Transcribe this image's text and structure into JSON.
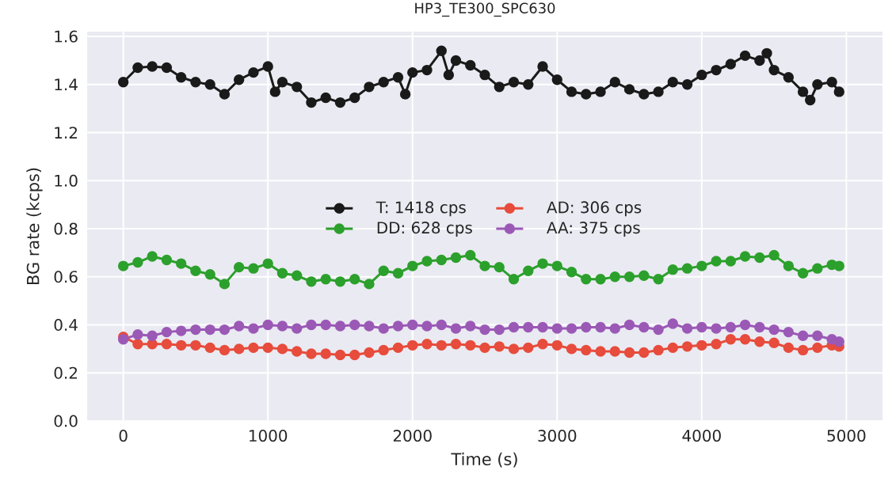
{
  "chart_data": {
    "type": "line",
    "title": "HP3_TE300_SPC630",
    "xlabel": "Time (s)",
    "ylabel": "BG rate (kcps)",
    "xlim": [
      -250,
      5250
    ],
    "ylim": [
      0,
      1.62
    ],
    "xticks": [
      0,
      1000,
      2000,
      3000,
      4000,
      5000
    ],
    "yticks": [
      {
        "value": 0,
        "label": "0.0"
      },
      {
        "value": 0.2,
        "label": "0.2"
      },
      {
        "value": 0.4,
        "label": "0.4"
      },
      {
        "value": 0.6,
        "label": "0.6"
      },
      {
        "value": 0.8,
        "label": "0.8"
      },
      {
        "value": 1.0,
        "label": "1.0"
      },
      {
        "value": 1.2,
        "label": "1.2"
      },
      {
        "value": 1.4,
        "label": "1.4"
      },
      {
        "value": 1.6,
        "label": "1.6"
      }
    ],
    "grid": true,
    "legend": "center",
    "marker": "circle",
    "line_style": "solid",
    "x": [
      0,
      100,
      200,
      300,
      400,
      500,
      600,
      700,
      800,
      900,
      1000,
      1100,
      1200,
      1300,
      1400,
      1500,
      1600,
      1700,
      1800,
      1900,
      2000,
      2100,
      2200,
      2300,
      2400,
      2500,
      2600,
      2700,
      2800,
      2900,
      3000,
      3100,
      3200,
      3300,
      3400,
      3500,
      3600,
      3700,
      3800,
      3900,
      4000,
      4100,
      4200,
      4300,
      4400,
      4500,
      4600,
      4700,
      4800,
      4900,
      4950
    ],
    "series": [
      {
        "name": "T: 1418 cps",
        "color": "#1a1a1a",
        "x": [
          0,
          100,
          200,
          300,
          400,
          500,
          600,
          700,
          800,
          900,
          1000,
          1050,
          1100,
          1200,
          1300,
          1400,
          1500,
          1600,
          1700,
          1800,
          1900,
          1950,
          2000,
          2100,
          2200,
          2250,
          2300,
          2400,
          2500,
          2600,
          2700,
          2800,
          2900,
          3000,
          3100,
          3200,
          3300,
          3400,
          3500,
          3600,
          3700,
          3800,
          3900,
          4000,
          4100,
          4200,
          4300,
          4400,
          4450,
          4500,
          4600,
          4700,
          4750,
          4800,
          4900,
          4950
        ],
        "values": [
          1.41,
          1.47,
          1.475,
          1.47,
          1.43,
          1.41,
          1.4,
          1.36,
          1.42,
          1.45,
          1.475,
          1.37,
          1.41,
          1.39,
          1.325,
          1.345,
          1.325,
          1.345,
          1.39,
          1.41,
          1.43,
          1.36,
          1.45,
          1.46,
          1.54,
          1.44,
          1.5,
          1.48,
          1.44,
          1.39,
          1.41,
          1.4,
          1.475,
          1.42,
          1.37,
          1.36,
          1.37,
          1.41,
          1.38,
          1.36,
          1.37,
          1.41,
          1.4,
          1.44,
          1.46,
          1.485,
          1.52,
          1.5,
          1.53,
          1.46,
          1.43,
          1.37,
          1.335,
          1.4,
          1.41,
          1.37
        ]
      },
      {
        "name": "DD: 628 cps",
        "color": "#2ca02c",
        "values": [
          0.645,
          0.66,
          0.685,
          0.67,
          0.655,
          0.625,
          0.61,
          0.57,
          0.64,
          0.635,
          0.655,
          0.615,
          0.605,
          0.58,
          0.59,
          0.58,
          0.59,
          0.57,
          0.625,
          0.615,
          0.645,
          0.665,
          0.67,
          0.68,
          0.69,
          0.645,
          0.64,
          0.59,
          0.625,
          0.655,
          0.645,
          0.62,
          0.59,
          0.59,
          0.6,
          0.6,
          0.605,
          0.59,
          0.63,
          0.635,
          0.645,
          0.665,
          0.665,
          0.685,
          0.68,
          0.69,
          0.645,
          0.615,
          0.635,
          0.65,
          0.645
        ]
      },
      {
        "name": "AD: 306 cps",
        "color": "#e74c3c",
        "values": [
          0.35,
          0.32,
          0.32,
          0.32,
          0.315,
          0.315,
          0.305,
          0.295,
          0.3,
          0.305,
          0.305,
          0.3,
          0.29,
          0.28,
          0.28,
          0.275,
          0.275,
          0.285,
          0.295,
          0.305,
          0.315,
          0.32,
          0.315,
          0.32,
          0.315,
          0.305,
          0.31,
          0.3,
          0.305,
          0.32,
          0.315,
          0.3,
          0.295,
          0.29,
          0.29,
          0.285,
          0.285,
          0.295,
          0.305,
          0.31,
          0.315,
          0.32,
          0.34,
          0.34,
          0.33,
          0.325,
          0.305,
          0.295,
          0.305,
          0.315,
          0.31
        ]
      },
      {
        "name": "AA: 375 cps",
        "color": "#9b59b6",
        "values": [
          0.34,
          0.36,
          0.355,
          0.37,
          0.375,
          0.38,
          0.38,
          0.38,
          0.395,
          0.385,
          0.4,
          0.395,
          0.385,
          0.4,
          0.4,
          0.395,
          0.4,
          0.395,
          0.385,
          0.395,
          0.4,
          0.395,
          0.4,
          0.385,
          0.395,
          0.38,
          0.38,
          0.39,
          0.39,
          0.39,
          0.385,
          0.385,
          0.39,
          0.39,
          0.385,
          0.4,
          0.39,
          0.38,
          0.405,
          0.385,
          0.39,
          0.385,
          0.39,
          0.4,
          0.39,
          0.38,
          0.37,
          0.355,
          0.355,
          0.34,
          0.33
        ]
      }
    ]
  }
}
